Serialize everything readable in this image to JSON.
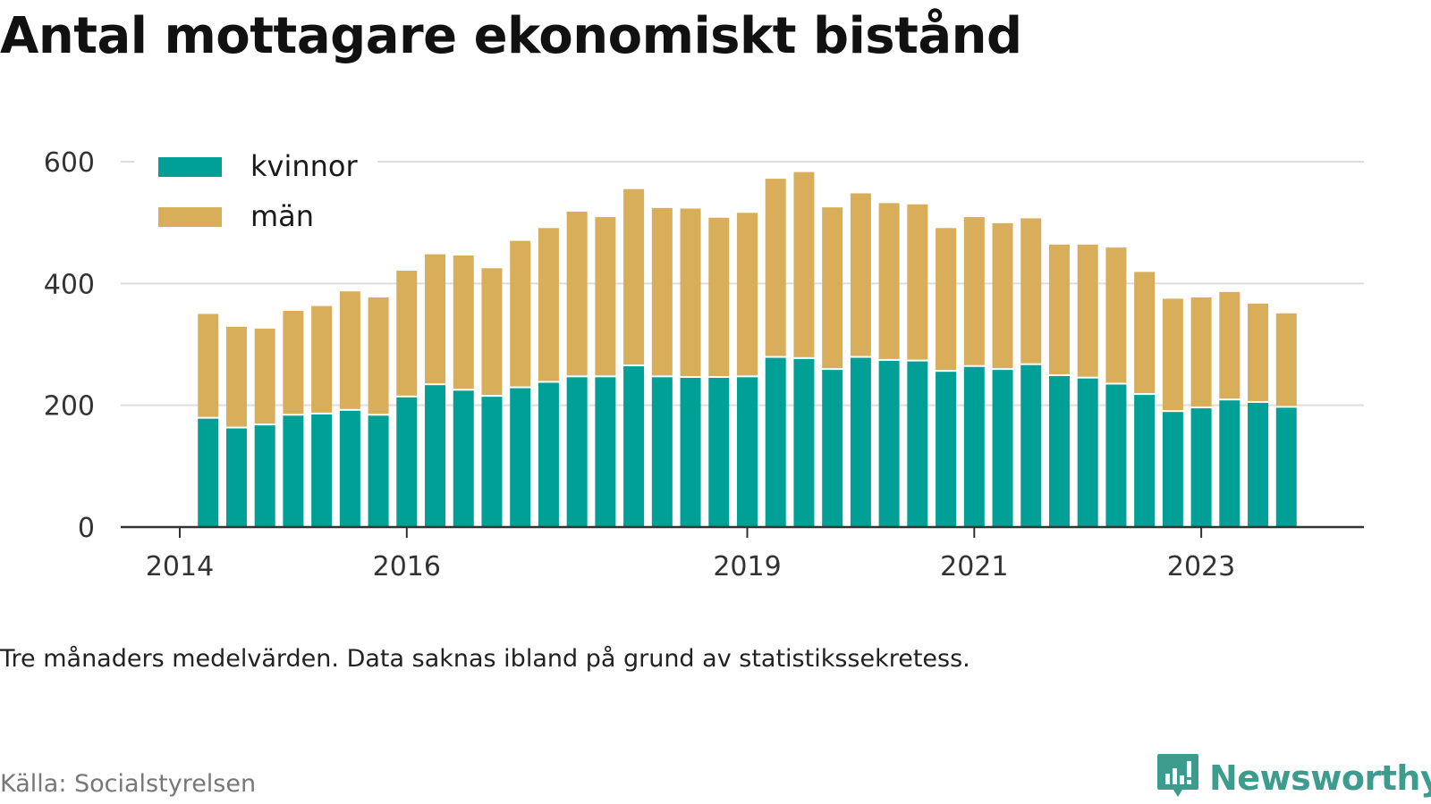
{
  "title": "Antal mottagare ekonomiskt bistånd",
  "note": "Tre månaders medelvärden. Data saknas ibland på grund av statistikssekretess.",
  "source": "Källa: Socialstyrelsen",
  "brand": {
    "name": "Newsworthy",
    "icon": "newsworthy-logo-icon",
    "color": "#3c9c8e"
  },
  "chart_data": {
    "type": "bar",
    "stacked": true,
    "title": "Antal mottagare ekonomiskt bistånd",
    "xlabel": "",
    "ylabel": "",
    "ylim": [
      0,
      600
    ],
    "yticks": [
      0,
      200,
      400,
      600
    ],
    "xticks": [
      "2014",
      "2016",
      "2019",
      "2021",
      "2023"
    ],
    "grid": true,
    "legend_position": "top-left",
    "x": [
      "2014-04",
      "2014-07",
      "2014-10",
      "2015-01",
      "2015-04",
      "2015-07",
      "2015-10",
      "2016-01",
      "2016-04",
      "2016-07",
      "2016-10",
      "2017-01",
      "2017-04",
      "2017-07",
      "2017-10",
      "2018-01",
      "2018-04",
      "2018-07",
      "2018-10",
      "2019-01",
      "2019-04",
      "2019-07",
      "2019-10",
      "2020-01",
      "2020-04",
      "2020-07",
      "2020-10",
      "2021-01",
      "2021-04",
      "2021-07",
      "2021-10",
      "2022-01",
      "2022-04",
      "2022-07",
      "2022-10",
      "2023-01",
      "2023-04",
      "2023-07",
      "2023-10"
    ],
    "series": [
      {
        "name": "kvinnor",
        "color": "#00a096",
        "values": [
          178,
          162,
          167,
          183,
          185,
          191,
          183,
          213,
          233,
          224,
          214,
          228,
          237,
          246,
          246,
          264,
          246,
          245,
          245,
          246,
          278,
          276,
          258,
          278,
          273,
          272,
          255,
          263,
          258,
          266,
          248,
          244,
          234,
          217,
          189,
          195,
          208,
          204,
          196
        ]
      },
      {
        "name": "män",
        "color": "#d8ae5b",
        "values": [
          172,
          167,
          159,
          172,
          178,
          196,
          194,
          208,
          215,
          222,
          211,
          242,
          254,
          272,
          263,
          291,
          278,
          278,
          263,
          270,
          294,
          307,
          267,
          270,
          259,
          258,
          236,
          246,
          241,
          241,
          216,
          220,
          225,
          202,
          186,
          182,
          178,
          163,
          155
        ]
      }
    ]
  }
}
